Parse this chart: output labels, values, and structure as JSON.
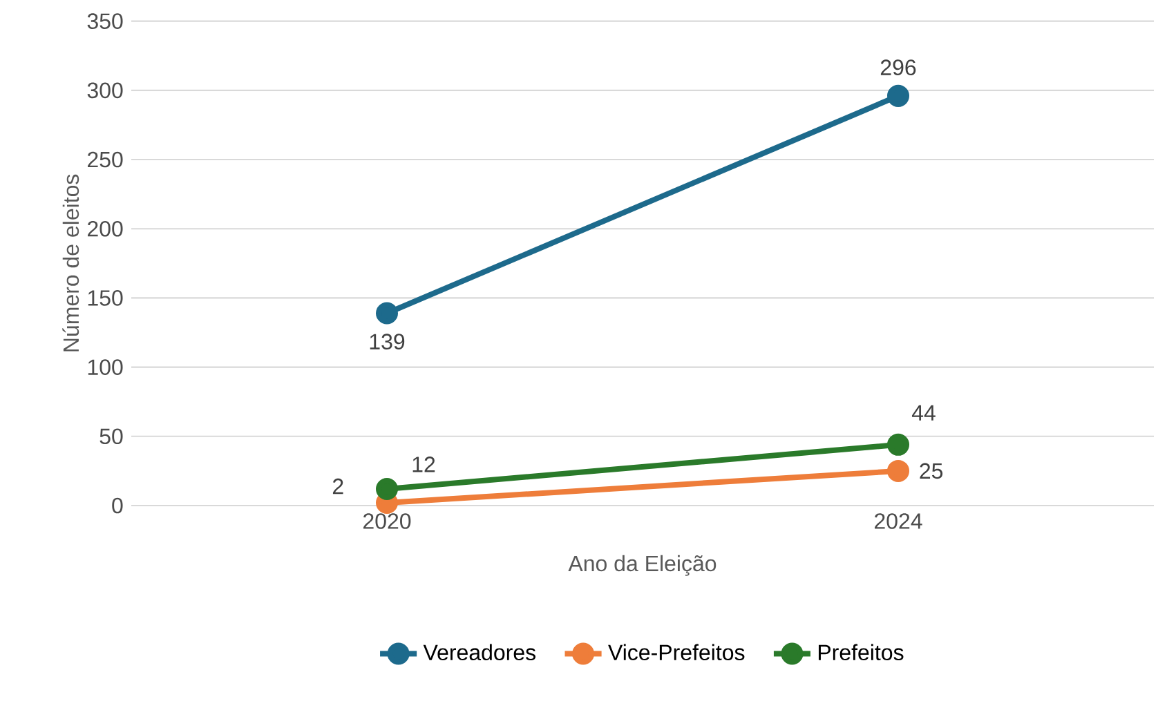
{
  "chart_data": {
    "type": "line",
    "xlabel": "Ano da Eleição",
    "ylabel": "Número de eleitos",
    "categories": [
      "2020",
      "2024"
    ],
    "series": [
      {
        "name": "Vereadores",
        "color": "#1d6a8c",
        "values": [
          139,
          296
        ]
      },
      {
        "name": "Vice-Prefeitos",
        "color": "#ee7d3a",
        "values": [
          2,
          25
        ]
      },
      {
        "name": "Prefeitos",
        "color": "#2a7a2a",
        "values": [
          12,
          44
        ]
      }
    ],
    "ylim": [
      0,
      350
    ],
    "yticks": [
      0,
      50,
      100,
      150,
      200,
      250,
      300,
      350
    ],
    "grid": "y",
    "legend": "bottom",
    "marker": "circle",
    "line_style": "solid",
    "data_labels": true
  }
}
